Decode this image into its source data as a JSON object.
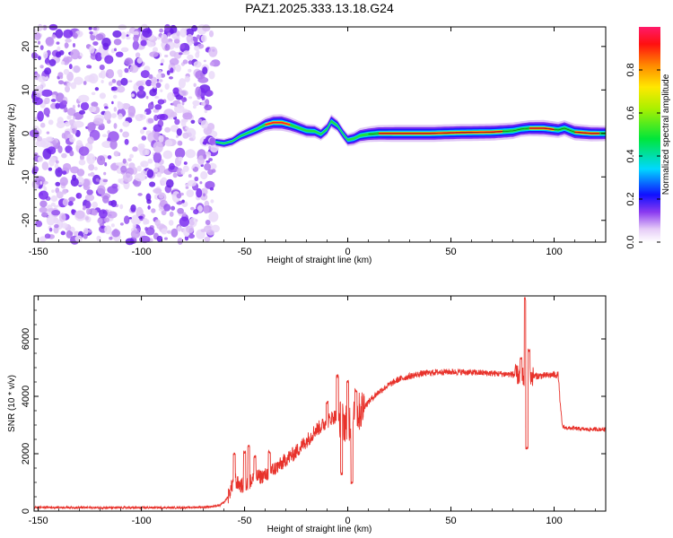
{
  "title": "PAZ1.2025.333.13.18.G24",
  "chart_data": [
    {
      "type": "heatmap",
      "xlabel": "Height of straight line (km)",
      "ylabel": "Frequency (Hz)",
      "xlim": [
        -152,
        125
      ],
      "ylim": [
        -25,
        24.5
      ],
      "xticks": [
        -150,
        -100,
        -50,
        0,
        50,
        100
      ],
      "yticks": [
        -20,
        -10,
        0,
        10,
        20
      ],
      "colorbar": {
        "label": "Normalized spectral amplitude",
        "range": [
          0,
          1
        ],
        "ticks": [
          0.0,
          0.2,
          0.4,
          0.6,
          0.8
        ],
        "tick_labels": [
          "0.0",
          "0.2",
          "0.4",
          "0.6",
          "0.8"
        ],
        "colormap": "rainbow",
        "placement": "right"
      },
      "noise_region": {
        "x_range": [
          -152,
          -64
        ],
        "description": "scattered low-amplitude speckle"
      },
      "ridge": [
        {
          "x": -64,
          "freq": -2.0,
          "amp": 0.25
        },
        {
          "x": -60,
          "freq": -2.3,
          "amp": 0.3
        },
        {
          "x": -56,
          "freq": -1.8,
          "amp": 0.35
        },
        {
          "x": -52,
          "freq": -0.6,
          "amp": 0.45
        },
        {
          "x": -48,
          "freq": 0.2,
          "amp": 0.55
        },
        {
          "x": -44,
          "freq": 1.0,
          "amp": 0.6
        },
        {
          "x": -40,
          "freq": 2.0,
          "amp": 0.75
        },
        {
          "x": -36,
          "freq": 2.5,
          "amp": 0.9
        },
        {
          "x": -32,
          "freq": 2.5,
          "amp": 0.95
        },
        {
          "x": -28,
          "freq": 2.0,
          "amp": 0.85
        },
        {
          "x": -24,
          "freq": 1.3,
          "amp": 0.75
        },
        {
          "x": -20,
          "freq": 0.6,
          "amp": 0.7
        },
        {
          "x": -16,
          "freq": 0.5,
          "amp": 0.65
        },
        {
          "x": -13,
          "freq": -0.2,
          "amp": 0.6
        },
        {
          "x": -10,
          "freq": 1.0,
          "amp": 0.65
        },
        {
          "x": -8,
          "freq": 2.8,
          "amp": 0.7
        },
        {
          "x": -5,
          "freq": 1.8,
          "amp": 0.6
        },
        {
          "x": -2,
          "freq": -0.3,
          "amp": 0.55
        },
        {
          "x": 0,
          "freq": -1.5,
          "amp": 0.6
        },
        {
          "x": 3,
          "freq": -1.2,
          "amp": 0.7
        },
        {
          "x": 6,
          "freq": -0.5,
          "amp": 0.8
        },
        {
          "x": 10,
          "freq": -0.2,
          "amp": 0.85
        },
        {
          "x": 15,
          "freq": 0.0,
          "amp": 0.95
        },
        {
          "x": 25,
          "freq": 0.0,
          "amp": 1.0
        },
        {
          "x": 40,
          "freq": 0.0,
          "amp": 1.0
        },
        {
          "x": 55,
          "freq": 0.2,
          "amp": 1.0
        },
        {
          "x": 70,
          "freq": 0.3,
          "amp": 1.0
        },
        {
          "x": 80,
          "freq": 0.6,
          "amp": 0.95
        },
        {
          "x": 84,
          "freq": 1.0,
          "amp": 0.85
        },
        {
          "x": 88,
          "freq": 1.2,
          "amp": 0.9
        },
        {
          "x": 95,
          "freq": 1.2,
          "amp": 0.95
        },
        {
          "x": 102,
          "freq": 0.8,
          "amp": 0.9
        },
        {
          "x": 105,
          "freq": 1.2,
          "amp": 0.9
        },
        {
          "x": 110,
          "freq": 0.3,
          "amp": 0.95
        },
        {
          "x": 118,
          "freq": 0.0,
          "amp": 0.9
        },
        {
          "x": 125,
          "freq": 0.0,
          "amp": 0.85
        }
      ]
    },
    {
      "type": "line",
      "xlabel": "Height of straight line (km)",
      "ylabel": "SNR (10 * v/v)",
      "xlim": [
        -152,
        125
      ],
      "ylim": [
        0,
        7500
      ],
      "xticks": [
        -150,
        -100,
        -50,
        0,
        50,
        100
      ],
      "yticks": [
        0,
        2000,
        4000,
        6000
      ],
      "color": "#e8322b",
      "series": [
        {
          "x": [
            -152,
            -140,
            -120,
            -100,
            -80,
            -70,
            -65,
            -62,
            -60,
            -58,
            -56,
            -55,
            -54,
            -52,
            -50,
            -48,
            -46,
            -44,
            -42,
            -40,
            -38,
            -36,
            -34,
            -32,
            -30,
            -28,
            -26,
            -24,
            -22,
            -20,
            -18,
            -16,
            -14,
            -12,
            -10,
            -8,
            -6,
            -4,
            -2,
            0,
            2,
            4,
            6,
            8,
            10,
            12,
            15,
            20,
            25,
            30,
            35,
            40,
            45,
            50,
            55,
            60,
            65,
            70,
            75,
            80,
            82,
            84,
            85,
            86,
            87,
            88,
            90,
            95,
            100,
            102,
            103,
            104,
            106,
            110,
            115,
            120,
            125
          ],
          "y": [
            130,
            130,
            120,
            120,
            120,
            140,
            160,
            200,
            300,
            500,
            900,
            1300,
            1000,
            900,
            850,
            1000,
            1100,
            1200,
            1200,
            1250,
            1350,
            1450,
            1550,
            1650,
            1800,
            1900,
            2000,
            2150,
            2300,
            2450,
            2600,
            2800,
            2900,
            3000,
            3100,
            3250,
            3300,
            3200,
            3100,
            3050,
            3200,
            3300,
            3500,
            3650,
            3800,
            3950,
            4150,
            4400,
            4600,
            4700,
            4780,
            4820,
            4850,
            4850,
            4850,
            4830,
            4820,
            4800,
            4780,
            4760,
            4750,
            4700,
            4650,
            4600,
            4700,
            4700,
            4700,
            4720,
            4750,
            4750,
            3700,
            2950,
            2900,
            2880,
            2850,
            2850,
            2850
          ],
          "spikes": [
            {
              "x": -55,
              "y": 2000
            },
            {
              "x": -50,
              "y": 2050
            },
            {
              "x": -48,
              "y": 2300
            },
            {
              "x": -45,
              "y": 1900
            },
            {
              "x": -38,
              "y": 2050
            },
            {
              "x": -10,
              "y": 3800
            },
            {
              "x": -5,
              "y": 4700
            },
            {
              "x": -3,
              "y": 1300
            },
            {
              "x": 0,
              "y": 4500
            },
            {
              "x": 2,
              "y": 1000
            },
            {
              "x": 4,
              "y": 4200
            },
            {
              "x": 84,
              "y": 5300
            },
            {
              "x": 86,
              "y": 7400
            },
            {
              "x": 86.8,
              "y": 2200
            },
            {
              "x": 87.8,
              "y": 5600
            }
          ]
        }
      ]
    }
  ]
}
